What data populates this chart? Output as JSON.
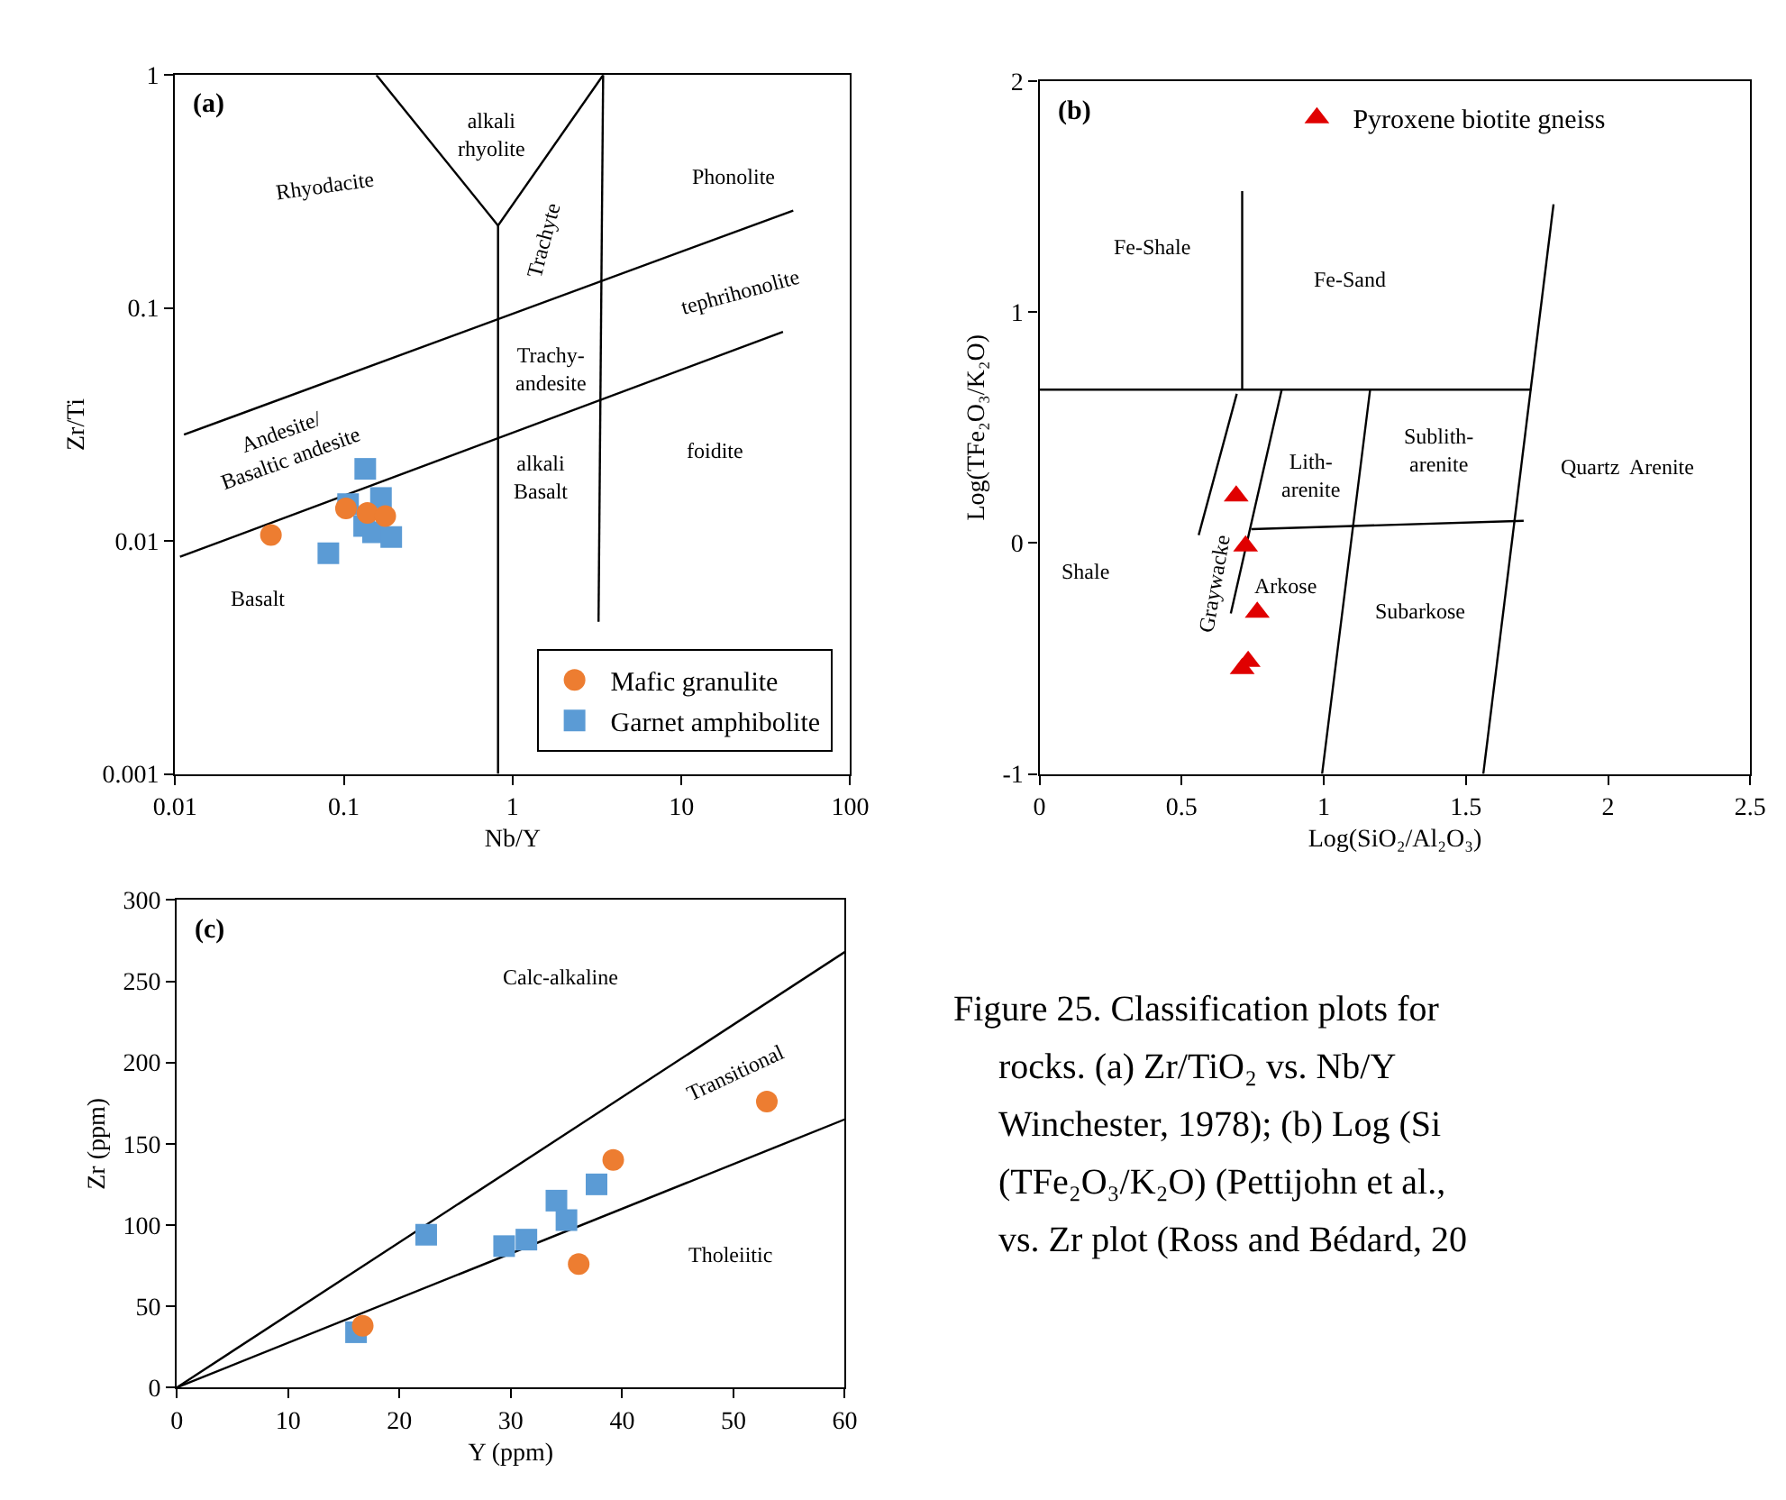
{
  "chart_data": [
    {
      "type": "scatter",
      "title": "(a)",
      "xlabel": "Nb/Y",
      "ylabel": "Zr/Ti",
      "log": "xy",
      "legend": "bottom right",
      "xlim": [
        0.01,
        100
      ],
      "xticks": [
        0.01,
        0.1,
        1,
        10,
        100
      ],
      "ylim": [
        0.001,
        1
      ],
      "yticks": [
        0.001,
        0.01,
        0.1,
        1
      ],
      "series": [
        {
          "type": "line",
          "color": "#000000",
          "x": [
            0.0113,
            46
          ],
          "values": [
            0.0286,
            0.262
          ]
        },
        {
          "type": "line",
          "color": "#000000",
          "x": [
            0.0107,
            40
          ],
          "values": [
            0.00855,
            0.079
          ]
        },
        {
          "type": "line",
          "color": "#000000",
          "x": [
            0.156,
            0.82,
            3.44
          ],
          "values": [
            1,
            0.226,
            1
          ]
        },
        {
          "type": "line",
          "color": "#000000",
          "x": [
            0.82,
            0.82
          ],
          "values": [
            0.226,
            0.001
          ]
        },
        {
          "type": "line",
          "color": "#000000",
          "x": [
            3.44,
            3.23
          ],
          "values": [
            1,
            0.0045
          ]
        },
        {
          "type": "scatter",
          "name": "Mafic granulite",
          "color": "#ed7d31",
          "marker": "circle",
          "x": [
            0.037,
            0.103,
            0.138,
            0.176
          ],
          "values": [
            0.0106,
            0.0138,
            0.0132,
            0.0128
          ]
        },
        {
          "type": "scatter",
          "name": "Garnet amphibolite",
          "color": "#5b9bd5",
          "marker": "square",
          "x": [
            0.134,
            0.106,
            0.166,
            0.132,
            0.149,
            0.191,
            0.081
          ],
          "values": [
            0.0204,
            0.0144,
            0.0153,
            0.0116,
            0.0109,
            0.0104,
            0.00886
          ]
        }
      ],
      "annotations": [
        "alkali\nrhyolite",
        "Rhyodacite",
        "Trachyte",
        "Phonolite",
        "tephrihonolite",
        "Trachy-\nandesite",
        "Andesite/\nBasaltic andesite",
        "alkali\nBasalt",
        "foidite",
        "Basalt"
      ]
    },
    {
      "type": "scatter",
      "title": "(b)",
      "xlabel": "Log(SiO₂/Al₂O₃)",
      "ylabel": "Log(TFe₂O₃/K₂O)",
      "legend": "top",
      "xlim": [
        0,
        2.5
      ],
      "xticks": [
        0,
        0.5,
        1,
        1.5,
        2,
        2.5
      ],
      "ylim": [
        -1,
        2
      ],
      "yticks": [
        -1,
        0,
        1,
        2
      ],
      "series": [
        {
          "type": "line",
          "color": "#000000",
          "x": [
            0.713,
            0.713
          ],
          "values": [
            1.523,
            0.664
          ]
        },
        {
          "type": "line",
          "color": "#000000",
          "x": [
            0,
            1.73
          ],
          "values": [
            0.664,
            0.664
          ]
        },
        {
          "type": "line",
          "color": "#000000",
          "x": [
            0.694,
            0.56
          ],
          "values": [
            0.646,
            0.034
          ]
        },
        {
          "type": "line",
          "color": "#000000",
          "x": [
            0.852,
            0.673
          ],
          "values": [
            0.664,
            -0.305
          ]
        },
        {
          "type": "line",
          "color": "#000000",
          "x": [
            1.163,
            0.994
          ],
          "values": [
            0.664,
            -1
          ]
        },
        {
          "type": "line",
          "color": "#000000",
          "x": [
            1.808,
            1.561
          ],
          "values": [
            1.466,
            -1
          ]
        },
        {
          "type": "line",
          "color": "#000000",
          "x": [
            0.745,
            1.703
          ],
          "values": [
            0.06,
            0.096
          ]
        },
        {
          "type": "scatter",
          "name": "Pyroxene biotite gneiss",
          "color": "#e00000",
          "marker": "triangle",
          "x": [
            0.692,
            0.725,
            0.766,
            0.734,
            0.713
          ],
          "values": [
            0.203,
            -0.013,
            -0.3,
            -0.513,
            -0.544
          ]
        }
      ],
      "annotations": [
        "Fe-Shale",
        "Fe-Sand",
        "Lith-\narenite",
        "Sublith-\narenite",
        "Quartz  Arenite",
        "Shale",
        "Arkose",
        "Graywacke",
        "Subarkose"
      ]
    },
    {
      "type": "scatter",
      "title": "(c)",
      "xlabel": "Y (ppm)",
      "ylabel": "Zr (ppm)",
      "xlim": [
        0,
        60
      ],
      "xticks": [
        0,
        10,
        20,
        30,
        40,
        50,
        60
      ],
      "ylim": [
        0,
        300
      ],
      "yticks": [
        0,
        50,
        100,
        150,
        200,
        250,
        300
      ],
      "series": [
        {
          "type": "line",
          "color": "#000000",
          "x": [
            0,
            60
          ],
          "values": [
            0,
            268
          ]
        },
        {
          "type": "line",
          "color": "#000000",
          "x": [
            0,
            60
          ],
          "values": [
            0,
            165
          ]
        },
        {
          "type": "scatter",
          "color": "#5b9bd5",
          "marker": "square",
          "x": [
            16.1,
            22.4,
            29.4,
            31.4,
            34.1,
            35.0,
            37.7
          ],
          "values": [
            34,
            94,
            87,
            91,
            115,
            103,
            125
          ]
        },
        {
          "type": "scatter",
          "color": "#ed7d31",
          "marker": "circle",
          "x": [
            16.7,
            36.1,
            39.2,
            53
          ],
          "values": [
            38,
            76,
            140,
            176
          ]
        }
      ],
      "annotations": [
        "Calc-alkaline",
        "Transitional",
        "Tholeiitic"
      ]
    },
    {
      "type": "other",
      "annotations": [
        "Figure 25. Classification plots for",
        "rocks. (a) Zr/TiO₂ vs. Nb/Y",
        "Winchester, 1978); (b) Log (Si",
        "(TFe₂O₃/K₂O) (Pettijohn et al.,",
        "vs. Zr plot (Ross and Bédard, 20"
      ]
    }
  ]
}
